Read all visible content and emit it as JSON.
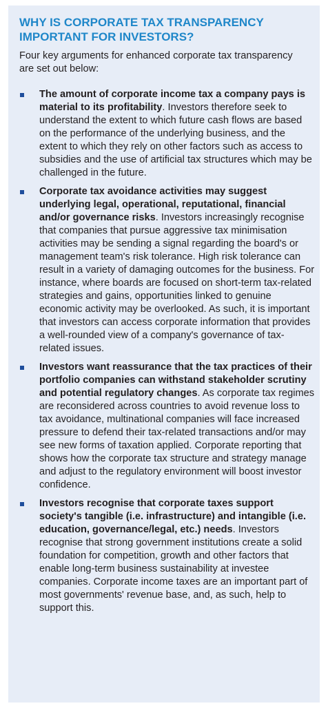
{
  "title": "WHY IS CORPORATE TAX TRANSPARENCY IMPORTANT FOR INVESTORS?",
  "intro": "Four key arguments for enhanced corporate tax transparency are set out below:",
  "items": [
    {
      "lead": "The amount of corporate income tax a company pays is material to its profitability",
      "text": ". Investors therefore seek to understand the extent to which future cash flows are based on the performance of the underlying business, and the extent to which they rely on other factors such as access to subsidies and the use of artificial tax structures which may be challenged in the future."
    },
    {
      "lead": "Corporate tax avoidance activities may suggest underlying legal, operational, reputational, financial and/or governance risks",
      "text": ". Investors increasingly recognise that companies that pursue aggressive tax minimisation activities may be sending a signal regarding the board's or management team's risk tolerance. High risk tolerance can result in a variety of damaging outcomes for the business. For instance, where boards are focused on short-term tax-related strategies and gains, opportunities linked to genuine economic activity may be overlooked. As such, it is important that investors can access corporate information that provides a well-rounded view of a company's governance of tax-related issues."
    },
    {
      "lead": "Investors want reassurance that the tax practices of their portfolio companies can withstand stakeholder scrutiny and potential regulatory changes",
      "text": ". As corporate tax regimes are reconsidered across countries to avoid revenue loss to tax avoidance, multinational companies will face increased pressure to defend their tax-related transactions and/or may see new forms of taxation applied. Corporate reporting that shows how the corporate tax structure and strategy manage and adjust to the regulatory environment will boost investor confidence."
    },
    {
      "lead": "Investors recognise that corporate taxes support society's tangible (i.e. infrastructure) and intangible (i.e. education, governance/legal, etc.) needs",
      "text": ". Investors recognise that strong government institutions create a solid foundation for competition, growth and other factors that enable long-term business sustainability at investee companies. Corporate income taxes are an important part of most governments' revenue base, and, as such, help to support this."
    }
  ]
}
